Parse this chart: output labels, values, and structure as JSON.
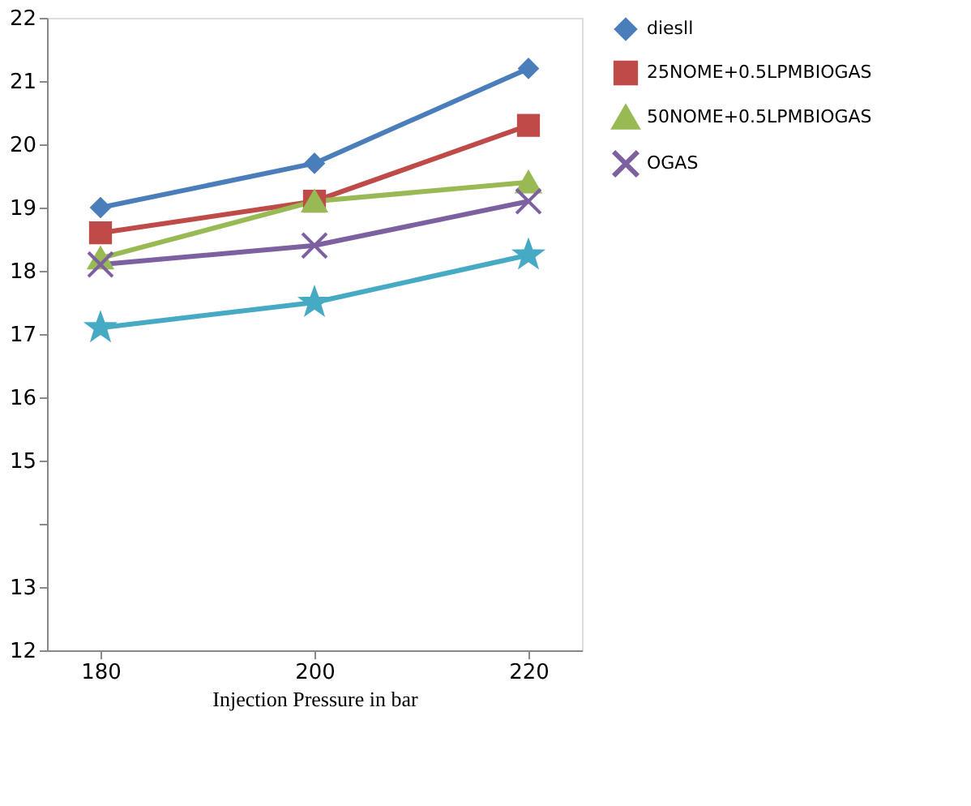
{
  "chart_data": {
    "type": "line",
    "xlabel": "Injection Pressure in bar",
    "categories": [
      "180",
      "200",
      "220"
    ],
    "ylim": [
      12,
      22
    ],
    "yticks": [
      12,
      13,
      {
        "value": 14,
        "label": null
      },
      15,
      16,
      17,
      18,
      19,
      20,
      21,
      22
    ],
    "grid": false,
    "legend": "right",
    "line_style": "solid",
    "series": [
      {
        "name": "diesll",
        "color": "#4a7ebb",
        "marker": "diamond",
        "values": [
          19.0,
          19.7,
          21.2
        ]
      },
      {
        "name": "25NOME+0.5LPMBIOGAS",
        "color": "#be4b48",
        "marker": "square",
        "values": [
          18.6,
          19.1,
          20.3
        ]
      },
      {
        "name": "50NOME+0.5LPMBIOGAS",
        "color": "#98b954",
        "marker": "triangle",
        "values": [
          18.2,
          19.1,
          19.4
        ]
      },
      {
        "name": "OGAS",
        "color": "#7d60a0",
        "marker": "cross",
        "values": [
          18.1,
          18.4,
          19.1
        ]
      },
      {
        "color": "#46aac5",
        "marker": "star",
        "values": [
          17.1,
          17.5,
          18.25
        ]
      }
    ]
  }
}
